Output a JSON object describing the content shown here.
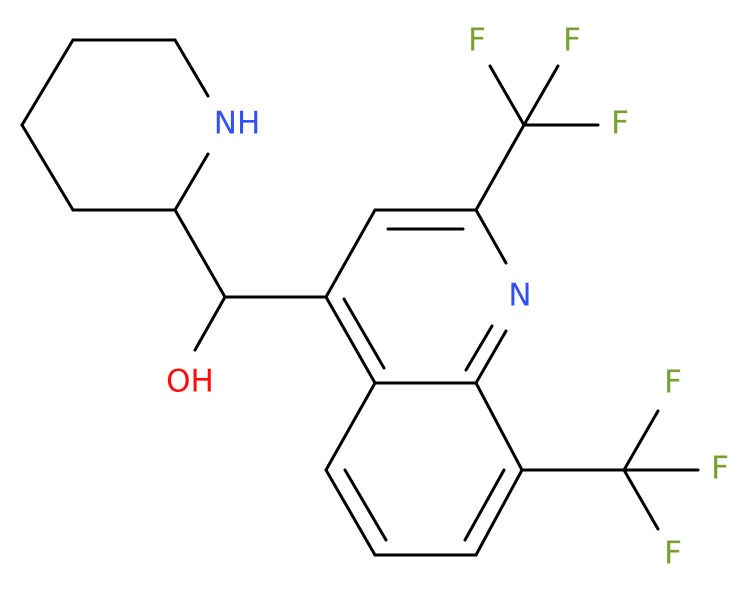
{
  "atoms": {
    "piperidine_n": "NH",
    "quinoline_n": "N",
    "hydroxyl": "OH",
    "cf3_top": [
      "F",
      "F",
      "F"
    ],
    "cf3_bottom": [
      "F",
      "F",
      "F"
    ]
  }
}
